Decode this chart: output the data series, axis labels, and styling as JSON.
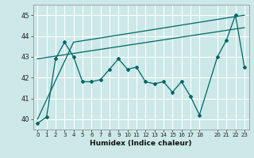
{
  "xlabel": "Humidex (Indice chaleur)",
  "bg_color": "#cce8e8",
  "line_color": "#006666",
  "grid_color": "#ffffff",
  "xlim": [
    -0.5,
    23.5
  ],
  "ylim": [
    39.5,
    45.5
  ],
  "yticks": [
    40,
    41,
    42,
    43,
    44,
    45
  ],
  "xticks": [
    0,
    1,
    2,
    3,
    4,
    5,
    6,
    7,
    8,
    9,
    10,
    11,
    12,
    13,
    14,
    15,
    16,
    17,
    18,
    20,
    21,
    22,
    23
  ],
  "line1_x": [
    0,
    1,
    2,
    3,
    4,
    5,
    6,
    7,
    8,
    9,
    10,
    11,
    12,
    13,
    14,
    15,
    16,
    17,
    18,
    20,
    21,
    22,
    23
  ],
  "line1_y": [
    39.8,
    40.1,
    42.9,
    43.7,
    43.0,
    41.8,
    41.8,
    41.9,
    42.4,
    42.9,
    42.4,
    42.5,
    41.8,
    41.7,
    41.8,
    41.3,
    41.8,
    41.1,
    40.2,
    43.0,
    43.8,
    45.0,
    42.5
  ],
  "line2_x": [
    0,
    4,
    23
  ],
  "line2_y": [
    40.0,
    43.7,
    45.0
  ],
  "line3_x": [
    0,
    23
  ],
  "line3_y": [
    42.9,
    44.4
  ]
}
